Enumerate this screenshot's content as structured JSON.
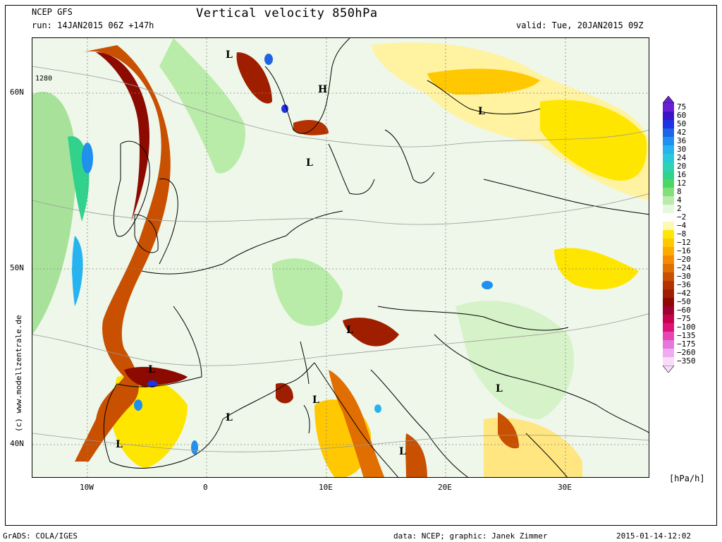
{
  "header": {
    "model": "NCEP GFS",
    "run": "run: 14JAN2015 06Z +147h",
    "title": "Vertical velocity 850hPa",
    "valid": "valid: Tue, 20JAN2015 09Z"
  },
  "map": {
    "contour_label": "1280",
    "lat_labels": [
      "60N",
      "50N",
      "40N"
    ],
    "lon_labels": [
      "10W",
      "0",
      "10E",
      "20E",
      "30E"
    ],
    "pressure_centers": [
      {
        "type": "L",
        "name": "north-sea-low"
      },
      {
        "type": "H",
        "name": "norway-high"
      },
      {
        "type": "L",
        "name": "finland-low"
      },
      {
        "type": "L",
        "name": "denmark-low"
      },
      {
        "type": "L",
        "name": "alps-low"
      },
      {
        "type": "L",
        "name": "biscay-low"
      },
      {
        "type": "L",
        "name": "balkan-low"
      },
      {
        "type": "L",
        "name": "corsica-low"
      },
      {
        "type": "L",
        "name": "balearic-low"
      },
      {
        "type": "L",
        "name": "iberia-low"
      },
      {
        "type": "L",
        "name": "calabria-low"
      }
    ]
  },
  "legend": {
    "unit": "[hPa/h]",
    "items": [
      {
        "label": "75",
        "color": "#6a1fd6"
      },
      {
        "label": "60",
        "color": "#3c14c8"
      },
      {
        "label": "50",
        "color": "#1e32e6"
      },
      {
        "label": "42",
        "color": "#1e64e6"
      },
      {
        "label": "36",
        "color": "#1e90f0"
      },
      {
        "label": "30",
        "color": "#26b4f0"
      },
      {
        "label": "24",
        "color": "#2ac8d8"
      },
      {
        "label": "20",
        "color": "#2ed2b4"
      },
      {
        "label": "16",
        "color": "#30d28c"
      },
      {
        "label": "12",
        "color": "#4cd664"
      },
      {
        "label": "8",
        "color": "#82e07a"
      },
      {
        "label": "4",
        "color": "#b8eca8"
      },
      {
        "label": "2",
        "color": "#e6f8e0"
      },
      {
        "label": "−2",
        "color": "#ffffff"
      },
      {
        "label": "−4",
        "color": "#fff8b0"
      },
      {
        "label": "−8",
        "color": "#ffe600"
      },
      {
        "label": "−12",
        "color": "#ffc800"
      },
      {
        "label": "−16",
        "color": "#ffaa00"
      },
      {
        "label": "−20",
        "color": "#f58c00"
      },
      {
        "label": "−24",
        "color": "#e06e00"
      },
      {
        "label": "−30",
        "color": "#c85000"
      },
      {
        "label": "−36",
        "color": "#b43200"
      },
      {
        "label": "−42",
        "color": "#a01e00"
      },
      {
        "label": "−50",
        "color": "#8c0a00"
      },
      {
        "label": "−60",
        "color": "#a00032"
      },
      {
        "label": "−75",
        "color": "#c80050"
      },
      {
        "label": "−100",
        "color": "#dc1478"
      },
      {
        "label": "−135",
        "color": "#e646b4"
      },
      {
        "label": "−175",
        "color": "#e678dc"
      },
      {
        "label": "−260",
        "color": "#f0aaf0"
      },
      {
        "label": "−350",
        "color": "#f8dcf8"
      }
    ]
  },
  "watermark": "(c) www.modellzentrale.de",
  "footer": {
    "left": "GrADS: COLA/IGES",
    "center": "data: NCEP; graphic: Janek Zimmer",
    "right": "2015-01-14-12:02"
  }
}
